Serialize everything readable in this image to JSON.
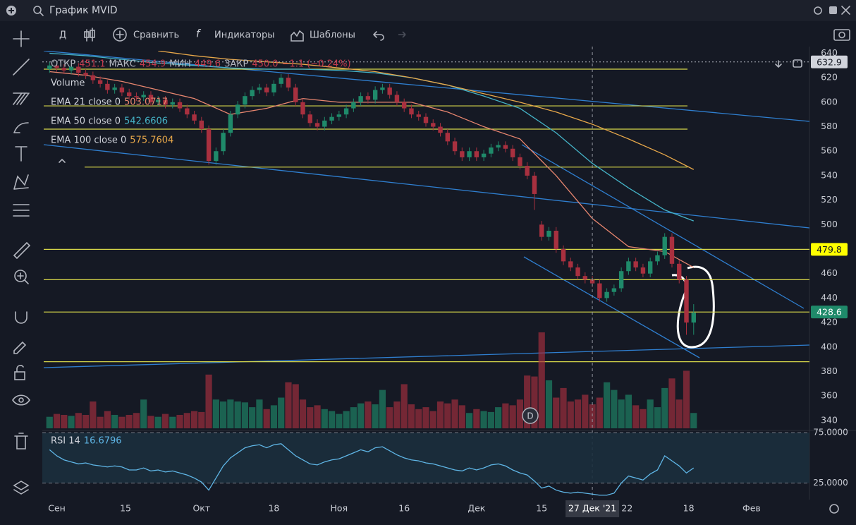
{
  "header": {
    "title": "График MVID"
  },
  "toolbar": {
    "interval": "Д",
    "compare": "Сравнить",
    "indicators": "Индикаторы",
    "templates": "Шаблоны"
  },
  "chart_data": {
    "type": "candlestick",
    "ohlc_legend": [
      {
        "name": "ОТКР",
        "value": "451.1"
      },
      {
        "name": "МАКС",
        "value": "454.9"
      },
      {
        "name": "МИН",
        "value": "449.6"
      },
      {
        "name": "ЗАКР",
        "value": "450.0"
      }
    ],
    "change": "−1.1 (−0.24%)",
    "volume_label": "Volume",
    "up_color": "#1f8a6a",
    "down_color": "#a8303f",
    "open": [
      627,
      630,
      628,
      626,
      629,
      624,
      622,
      618,
      615,
      610,
      612,
      608,
      605,
      604,
      606,
      600,
      602,
      598,
      600,
      595,
      590,
      585,
      578,
      552,
      560,
      575,
      590,
      598,
      605,
      610,
      612,
      608,
      615,
      620,
      612,
      600,
      590,
      583,
      580,
      585,
      588,
      590,
      595,
      600,
      605,
      602,
      610,
      612,
      606,
      600,
      595,
      590,
      588,
      583,
      580,
      575,
      568,
      560,
      555,
      560,
      555,
      558,
      563,
      565,
      562,
      555,
      548,
      540,
      500,
      490,
      495,
      480,
      470,
      465,
      458,
      455,
      452,
      440,
      445,
      448,
      462,
      470,
      465,
      460,
      470,
      475,
      490,
      468,
      455,
      420
    ],
    "high": [
      633,
      633,
      631,
      632,
      632,
      627,
      625,
      621,
      618,
      615,
      615,
      611,
      608,
      609,
      609,
      605,
      605,
      603,
      603,
      598,
      593,
      588,
      581,
      563,
      578,
      593,
      601,
      608,
      613,
      615,
      615,
      618,
      623,
      623,
      615,
      603,
      593,
      586,
      588,
      591,
      593,
      598,
      603,
      608,
      608,
      613,
      615,
      615,
      609,
      603,
      598,
      593,
      591,
      586,
      583,
      578,
      571,
      563,
      563,
      563,
      561,
      566,
      568,
      568,
      565,
      558,
      551,
      543,
      503,
      498,
      498,
      483,
      473,
      468,
      461,
      458,
      455,
      448,
      451,
      465,
      473,
      473,
      468,
      473,
      478,
      493,
      493,
      471,
      458,
      435
    ],
    "low": [
      624,
      625,
      623,
      623,
      621,
      619,
      615,
      612,
      607,
      607,
      605,
      602,
      601,
      601,
      597,
      597,
      595,
      595,
      592,
      587,
      582,
      575,
      549,
      549,
      557,
      572,
      587,
      595,
      602,
      607,
      605,
      605,
      612,
      609,
      597,
      587,
      580,
      577,
      577,
      582,
      585,
      587,
      592,
      597,
      599,
      599,
      607,
      603,
      597,
      592,
      587,
      585,
      580,
      577,
      572,
      565,
      557,
      552,
      552,
      552,
      552,
      555,
      560,
      559,
      552,
      545,
      537,
      512,
      487,
      487,
      477,
      467,
      462,
      455,
      452,
      449,
      437,
      437,
      442,
      445,
      459,
      462,
      457,
      457,
      467,
      472,
      465,
      452,
      410,
      410
    ],
    "close": [
      630,
      628,
      626,
      629,
      624,
      622,
      618,
      615,
      610,
      612,
      608,
      605,
      604,
      606,
      600,
      602,
      598,
      600,
      595,
      590,
      585,
      578,
      552,
      560,
      575,
      590,
      598,
      605,
      610,
      612,
      608,
      615,
      620,
      612,
      600,
      590,
      583,
      580,
      585,
      588,
      590,
      595,
      600,
      605,
      602,
      610,
      612,
      606,
      600,
      595,
      590,
      588,
      583,
      580,
      575,
      568,
      560,
      555,
      560,
      555,
      558,
      563,
      565,
      562,
      555,
      548,
      540,
      525,
      490,
      495,
      480,
      470,
      465,
      458,
      455,
      452,
      440,
      445,
      448,
      462,
      470,
      465,
      460,
      470,
      475,
      490,
      468,
      455,
      420,
      428
    ],
    "volume": [
      12,
      15,
      14,
      13,
      16,
      14,
      28,
      12,
      18,
      14,
      12,
      14,
      16,
      30,
      13,
      12,
      15,
      12,
      14,
      16,
      18,
      17,
      56,
      30,
      28,
      30,
      28,
      27,
      22,
      30,
      20,
      24,
      32,
      48,
      46,
      30,
      22,
      24,
      20,
      18,
      15,
      18,
      22,
      26,
      28,
      25,
      40,
      22,
      28,
      46,
      25,
      20,
      22,
      18,
      28,
      26,
      30,
      24,
      16,
      20,
      18,
      17,
      22,
      26,
      24,
      30,
      55,
      54,
      100,
      50,
      32,
      42,
      28,
      30,
      35,
      25,
      32,
      48,
      40,
      30,
      35,
      24,
      20,
      30,
      22,
      42,
      52,
      30,
      60,
      16
    ],
    "ylim": [
      333,
      642
    ],
    "yticks": [
      640,
      620,
      600,
      580,
      560,
      540,
      520,
      500,
      480,
      460,
      440,
      420,
      400,
      380,
      360,
      340
    ],
    "xlim": [
      -1,
      105
    ],
    "xticks": [
      {
        "value": 1,
        "label": "Сен"
      },
      {
        "value": 10.5,
        "label": "15"
      },
      {
        "value": 21,
        "label": "Окт"
      },
      {
        "value": 31,
        "label": "18"
      },
      {
        "value": 40,
        "label": "Ноя"
      },
      {
        "value": 49,
        "label": "16"
      },
      {
        "value": 59,
        "label": "Дек"
      },
      {
        "value": 68,
        "label": "15"
      },
      {
        "value": 79.8,
        "label": "22"
      },
      {
        "value": 88.3,
        "label": "18"
      },
      {
        "value": 97,
        "label": "Фев"
      }
    ],
    "crosshair": {
      "value": 75,
      "label": "27 Дек '21"
    },
    "dividend_marker": "D",
    "levels": [
      627,
      597,
      578,
      547,
      479.8,
      455,
      428.6,
      388
    ],
    "level_color": "#d8d84a",
    "price_tags": [
      632.9,
      479.8,
      428.6
    ],
    "ema_x": [
      0,
      5,
      10,
      15,
      20,
      25,
      30,
      35,
      40,
      45,
      50,
      55,
      60,
      65,
      70,
      75,
      80,
      85,
      89
    ],
    "ema": [
      {
        "name": "EMA 21 close 0",
        "last": "503.0717",
        "color": "#e8866f",
        "values": [
          625,
          622,
          617,
          610,
          603,
          590,
          595,
          603,
          600,
          600,
          600,
          592,
          580,
          570,
          540,
          505,
          482,
          478,
          465
        ]
      },
      {
        "name": "EMA 50 close 0",
        "last": "542.6606",
        "color": "#45b4c8",
        "values": [
          640,
          638,
          635,
          632,
          630,
          628,
          627,
          627,
          626,
          624,
          620,
          614,
          605,
          595,
          575,
          550,
          530,
          512,
          503
        ]
      },
      {
        "name": "EMA 100 close 0",
        "last": "575.7604",
        "color": "#e8a84a",
        "values": [
          null,
          null,
          null,
          642,
          638,
          635,
          633,
          631,
          628,
          625,
          620,
          614,
          607,
          600,
          592,
          582,
          570,
          557,
          545
        ]
      }
    ],
    "rsi": {
      "name": "RSI 14",
      "last": "16.6796",
      "color": "#5fb6e6",
      "ylim": [
        10,
        80
      ],
      "yticks": [
        {
          "value": 75,
          "label": "75.0000"
        },
        {
          "value": 25,
          "label": "25.0000"
        }
      ],
      "values": [
        58,
        52,
        48,
        46,
        44,
        45,
        43,
        42,
        41,
        42,
        41,
        38,
        38,
        40,
        37,
        38,
        36,
        37,
        35,
        33,
        30,
        26,
        18,
        30,
        42,
        50,
        55,
        60,
        62,
        63,
        60,
        63,
        64,
        58,
        52,
        48,
        44,
        43,
        46,
        48,
        49,
        52,
        55,
        58,
        56,
        60,
        61,
        57,
        53,
        50,
        48,
        47,
        45,
        44,
        42,
        40,
        38,
        37,
        40,
        38,
        40,
        43,
        44,
        42,
        38,
        35,
        33,
        27,
        20,
        22,
        18,
        16,
        15,
        16,
        15,
        14,
        13,
        13,
        15,
        25,
        32,
        30,
        28,
        34,
        38,
        52,
        47,
        42,
        35,
        40
      ]
    }
  }
}
